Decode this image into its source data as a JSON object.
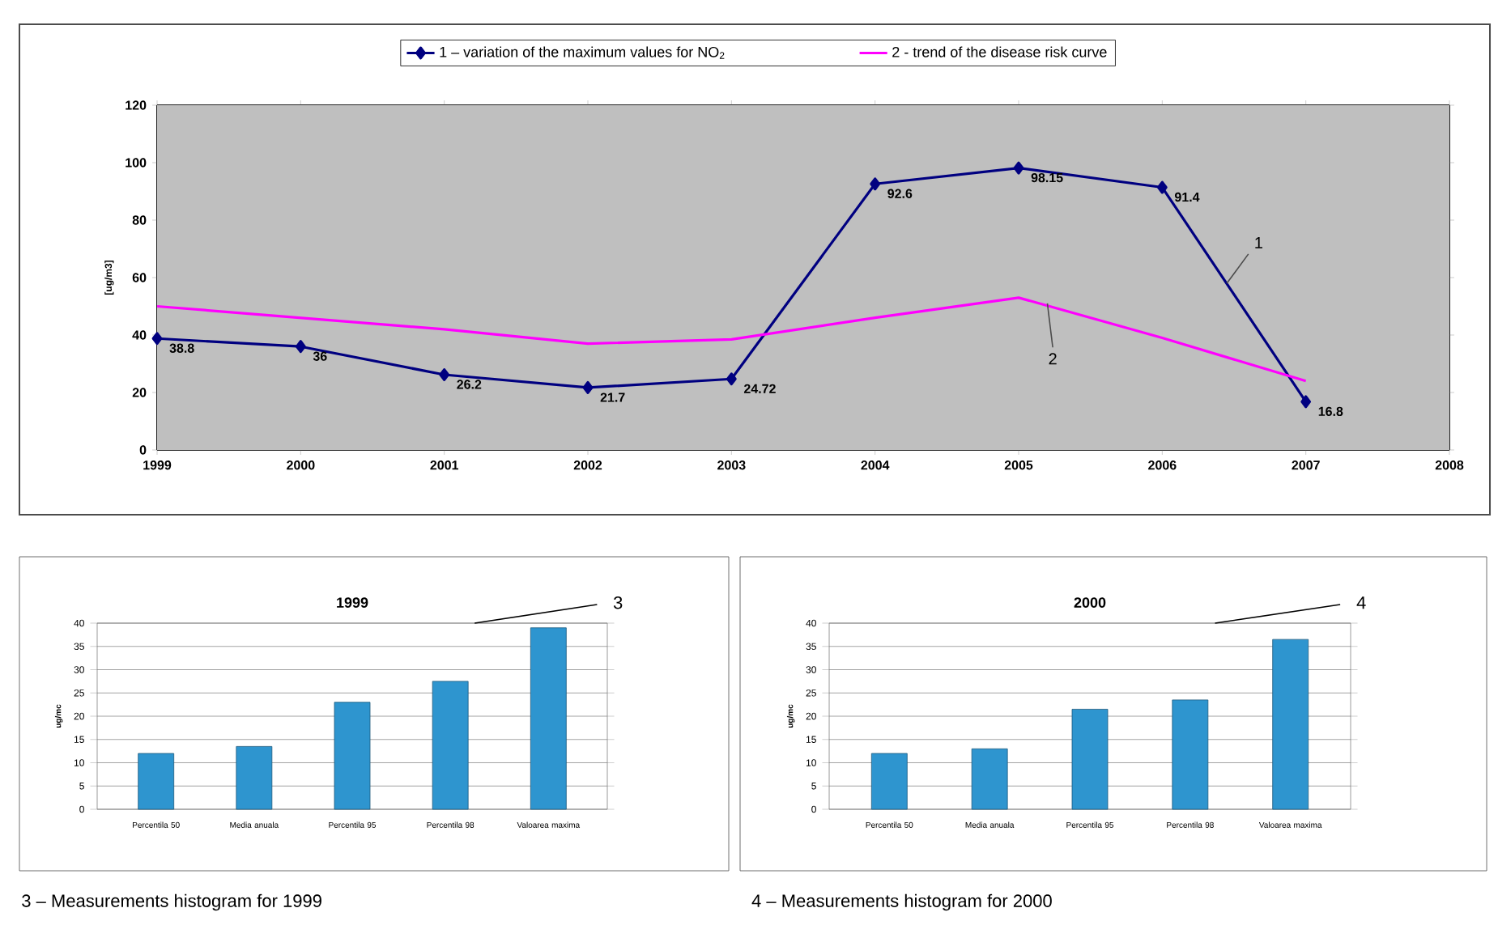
{
  "chart_data": [
    {
      "type": "line",
      "ylabel": "[ug/m3]",
      "x": [
        1999,
        2000,
        2001,
        2002,
        2003,
        2004,
        2005,
        2006,
        2007
      ],
      "series": [
        {
          "name": "1 – variation of the maximum values for NO$_{2}$",
          "color": "#000080",
          "marker": "diamond",
          "values": [
            38.8,
            36,
            26.2,
            21.7,
            24.72,
            92.6,
            98.15,
            91.4,
            16.8
          ],
          "value_labels": [
            "38.8",
            "36",
            "26.2",
            "21.7",
            "24.72",
            "92.6",
            "98.15",
            "91.4",
            "16.8"
          ]
        },
        {
          "name": "2 - trend of the disease risk curve",
          "color": "#ff00ff",
          "marker": "none",
          "values": [
            50,
            46,
            42,
            37,
            38.5,
            46,
            53,
            39,
            24
          ]
        }
      ],
      "xlim": [
        1999,
        2008
      ],
      "xticks": [
        1999,
        2000,
        2001,
        2002,
        2003,
        2004,
        2005,
        2006,
        2007,
        2008
      ],
      "ylim": [
        0,
        120
      ],
      "yticks": [
        0,
        20,
        40,
        60,
        80,
        100,
        120
      ],
      "grid": true,
      "legend": "top",
      "annotations": [
        {
          "text": "1",
          "x": 2006.45,
          "y": 58
        },
        {
          "text": "2",
          "x": 2005.2,
          "y": 51
        }
      ]
    },
    {
      "type": "bar",
      "title": "1999",
      "ylabel": "ug/mc",
      "categories": [
        "Percentila 50",
        "Media anuala",
        "Percentila 95",
        "Percentila 98",
        "Valoarea maxima"
      ],
      "values": [
        12,
        13.5,
        23,
        27.5,
        39
      ],
      "color": "#2e95cf",
      "ylim": [
        0,
        40
      ],
      "yticks": [
        0,
        5,
        10,
        15,
        20,
        25,
        30,
        35,
        40
      ],
      "grid": "y",
      "annotations": [
        "3",
        "3 – Measurements histogram for 1999"
      ]
    },
    {
      "type": "bar",
      "title": "2000",
      "ylabel": "ug/mc",
      "categories": [
        "Percentila 50",
        "Media anuala",
        "Percentila 95",
        "Percentila 98",
        "Valoarea maxima"
      ],
      "values": [
        12,
        13,
        21.5,
        23.5,
        36.5
      ],
      "color": "#2e95cf",
      "ylim": [
        0,
        40
      ],
      "yticks": [
        0,
        5,
        10,
        15,
        20,
        25,
        30,
        35,
        40
      ],
      "grid": "y",
      "annotations": [
        "4",
        "4 – Measurements histogram for 2000"
      ]
    }
  ]
}
